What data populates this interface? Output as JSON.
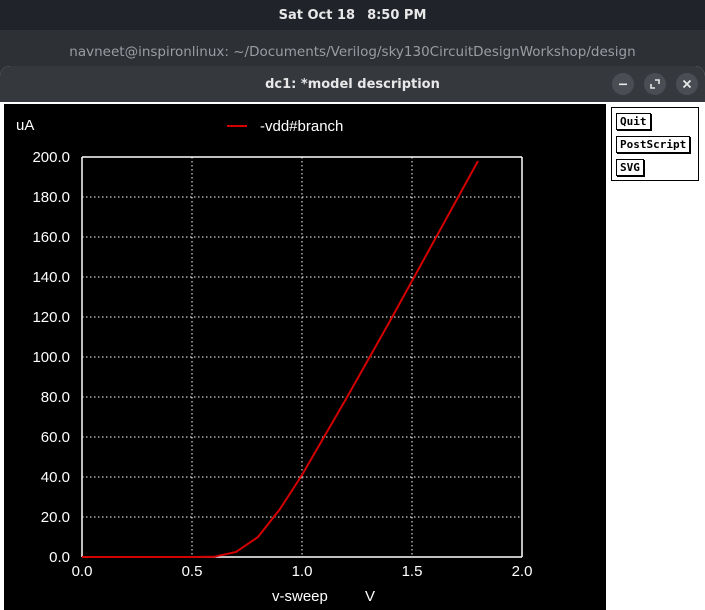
{
  "top_bar": {
    "date": "Sat Oct 18",
    "time": "8:50 PM"
  },
  "terminal": {
    "title": "navneet@inspironlinux: ~/Documents/Verilog/sky130CircuitDesignWorkshop/design"
  },
  "dialog": {
    "title": "dc1: *model description",
    "buttons": {
      "quit": "Quit",
      "postscript": "PostScript",
      "svg": "SVG"
    }
  },
  "icons": [
    "minimize-icon",
    "maximize-icon",
    "close-icon"
  ],
  "colors": {
    "trace": "#d40000",
    "grid": "#ffffff",
    "background": "#000000",
    "axis_text": "#ffffff"
  },
  "chart_data": {
    "type": "line",
    "y_unit": "uA",
    "xlabel": "v-sweep",
    "x_unit": "V",
    "x_ticks": [
      "0.0",
      "0.5",
      "1.0",
      "1.5",
      "2.0"
    ],
    "y_ticks": [
      "0.0",
      "20.0",
      "40.0",
      "60.0",
      "80.0",
      "100.0",
      "120.0",
      "140.0",
      "160.0",
      "180.0",
      "200.0"
    ],
    "xlim": [
      0,
      2.0
    ],
    "ylim": [
      0,
      200
    ],
    "grid": true,
    "legend_position": "top-center",
    "series": [
      {
        "name": "-vdd#branch",
        "x": [
          0.0,
          0.1,
          0.2,
          0.3,
          0.4,
          0.5,
          0.6,
          0.7,
          0.8,
          0.9,
          1.0,
          1.1,
          1.2,
          1.3,
          1.4,
          1.5,
          1.6,
          1.7,
          1.8
        ],
        "y": [
          0,
          0,
          0,
          0,
          0,
          0,
          0.1,
          2.5,
          10,
          24,
          41,
          60,
          79,
          98.5,
          118,
          138,
          158,
          178,
          198
        ]
      }
    ]
  }
}
